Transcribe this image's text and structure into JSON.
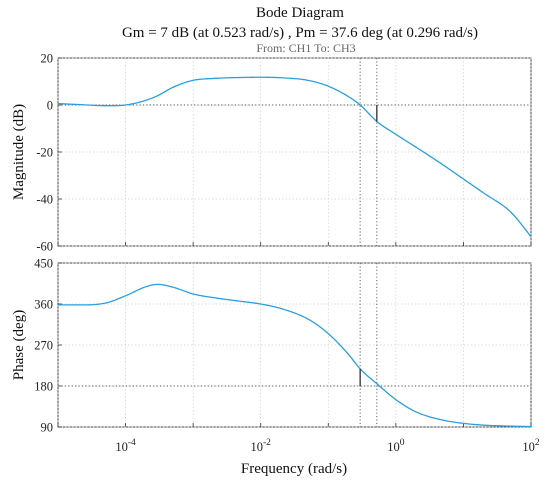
{
  "chart_data": {
    "type": "line",
    "title": "Bode Diagram",
    "subtitle": "Gm = 7 dB (at 0.523 rad/s) ,  Pm = 37.6 deg (at 0.296 rad/s)",
    "io_label": "From: CH1  To: CH3",
    "xlabel": "Frequency  (rad/s)",
    "xscale": "log",
    "xlim": [
      1e-05,
      100
    ],
    "x_ticks": [
      {
        "value": 0.0001,
        "base": "10",
        "exp": "-4"
      },
      {
        "value": 0.01,
        "base": "10",
        "exp": "-2"
      },
      {
        "value": 1,
        "base": "10",
        "exp": "0"
      },
      {
        "value": 100,
        "base": "10",
        "exp": "2"
      }
    ],
    "grid": true,
    "line_color": "#2a9fe0",
    "gain_margin": {
      "value_db": 7,
      "frequency": 0.523
    },
    "phase_margin": {
      "value_deg": 37.6,
      "frequency": 0.296
    },
    "magnitude": {
      "ylabel": "Magnitude (dB)",
      "ylim": [
        -60,
        20
      ],
      "yticks": [
        "20",
        "0",
        "-20",
        "-40",
        "-60"
      ],
      "reference_line": 0,
      "x": [
        1e-05,
        2e-05,
        5e-05,
        0.0001,
        0.0002,
        0.0003,
        0.0005,
        0.001,
        0.002,
        0.005,
        0.01,
        0.02,
        0.05,
        0.1,
        0.2,
        0.296,
        0.523,
        1,
        2,
        5,
        10,
        20,
        50,
        100
      ],
      "y": [
        0.6,
        0.2,
        -0.3,
        0,
        2,
        4,
        7.5,
        10.5,
        11.3,
        11.7,
        11.8,
        11.6,
        10.5,
        8,
        3.5,
        0,
        -7,
        -12.5,
        -18,
        -25.5,
        -31.5,
        -37.5,
        -45.5,
        -56
      ]
    },
    "phase": {
      "ylabel": "Phase (deg)",
      "ylim": [
        90,
        450
      ],
      "yticks": [
        "450",
        "360",
        "270",
        "180",
        "90"
      ],
      "reference_line": 180,
      "x": [
        1e-05,
        2e-05,
        5e-05,
        0.0001,
        0.0002,
        0.0003,
        0.0005,
        0.001,
        0.002,
        0.005,
        0.01,
        0.02,
        0.05,
        0.1,
        0.2,
        0.296,
        0.523,
        1,
        2,
        5,
        10,
        20,
        50,
        100
      ],
      "y": [
        358,
        358,
        362,
        378,
        398,
        403,
        397,
        382,
        374,
        366,
        360,
        350,
        327,
        295,
        249,
        217.6,
        185,
        150,
        123,
        105,
        98,
        94,
        92,
        91
      ]
    }
  }
}
